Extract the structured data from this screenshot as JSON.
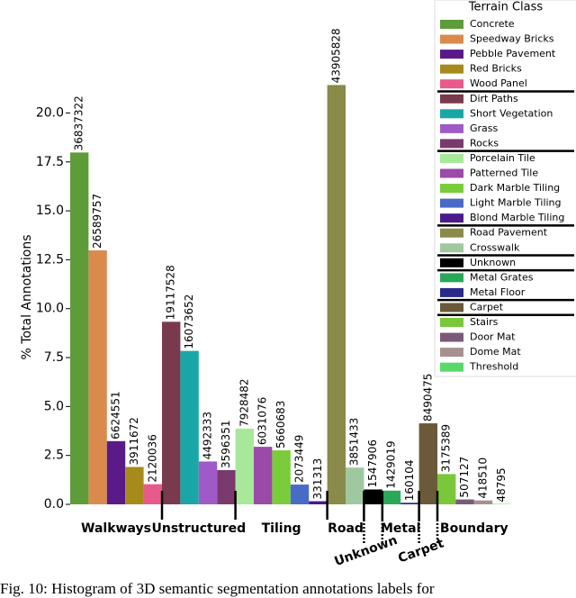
{
  "chart_data": {
    "type": "bar",
    "y_label": "% Total Annotations",
    "legend_title": "Terrain Class",
    "ylim": [
      0,
      22
    ],
    "yticks": [
      {
        "value": 0,
        "label": "0.0"
      },
      {
        "value": 2.5,
        "label": "2.5"
      },
      {
        "value": 5,
        "label": "5.0"
      },
      {
        "value": 7.5,
        "label": "7.5"
      },
      {
        "value": 10,
        "label": "10.0"
      },
      {
        "value": 12.5,
        "label": "12.5"
      },
      {
        "value": 15,
        "label": "15.0"
      },
      {
        "value": 17.5,
        "label": "17.5"
      },
      {
        "value": 20,
        "label": "20.0"
      }
    ],
    "groups": [
      {
        "name": "Walkways",
        "classes": [
          {
            "name": "Concrete",
            "color": "#5e9c3a",
            "value": 17.98,
            "count": 36837322
          },
          {
            "name": "Speedway Bricks",
            "color": "#d98b4e",
            "value": 12.98,
            "count": 26589757
          },
          {
            "name": "Pebble Pavement",
            "color": "#5a1a87",
            "value": 3.23,
            "count": 6624551
          },
          {
            "name": "Red Bricks",
            "color": "#a68b1c",
            "value": 1.91,
            "count": 3911672
          },
          {
            "name": "Wood Panel",
            "color": "#e85a8c",
            "value": 1.03,
            "count": 2120036
          }
        ]
      },
      {
        "name": "Unstructured",
        "classes": [
          {
            "name": "Dirt Paths",
            "color": "#7a3a4e",
            "value": 9.33,
            "count": 19117528
          },
          {
            "name": "Short Vegetation",
            "color": "#1aa6a6",
            "value": 7.84,
            "count": 16073652
          },
          {
            "name": "Grass",
            "color": "#a05ac8",
            "value": 2.19,
            "count": 4492333
          },
          {
            "name": "Rocks",
            "color": "#7a3a6e",
            "value": 1.75,
            "count": 3596351
          }
        ]
      },
      {
        "name": "Tiling",
        "classes": [
          {
            "name": "Porcelain Tile",
            "color": "#a8e89a",
            "value": 3.87,
            "count": 7928482
          },
          {
            "name": "Patterned Tile",
            "color": "#9a4aa8",
            "value": 2.94,
            "count": 6031076
          },
          {
            "name": "Dark Marble Tiling",
            "color": "#7acc3a",
            "value": 2.76,
            "count": 5660683
          },
          {
            "name": "Light Marble Tiling",
            "color": "#4a6ac8",
            "value": 1.01,
            "count": 2073449
          },
          {
            "name": "Blond Marble Tiling",
            "color": "#4a1a8a",
            "value": 0.16,
            "count": 331313
          }
        ]
      },
      {
        "name": "Road",
        "classes": [
          {
            "name": "Road Pavement",
            "color": "#8a8a4a",
            "value": 21.43,
            "count": 43905828
          },
          {
            "name": "Crosswalk",
            "color": "#a0c8a0",
            "value": 1.88,
            "count": 3851433
          }
        ]
      },
      {
        "name": "Unknown",
        "classes": [
          {
            "name": "Unknown",
            "color": "#000000",
            "value": 0.76,
            "count": 1547906
          }
        ]
      },
      {
        "name": "Metal",
        "classes": [
          {
            "name": "Metal Grates",
            "color": "#2aa85a",
            "value": 0.7,
            "count": 1429019
          },
          {
            "name": "Metal Floor",
            "color": "#2a2a8a",
            "value": 0.08,
            "count": 160104
          }
        ]
      },
      {
        "name": "Carpet",
        "classes": [
          {
            "name": "Carpet",
            "color": "#6a5a3a",
            "value": 4.14,
            "count": 8490475
          }
        ]
      },
      {
        "name": "Boundary",
        "classes": [
          {
            "name": "Stairs",
            "color": "#7ac83a",
            "value": 1.55,
            "count": 3175389
          },
          {
            "name": "Door Mat",
            "color": "#7a5a7a",
            "value": 0.25,
            "count": 507127
          },
          {
            "name": "Dome Mat",
            "color": "#a89090",
            "value": 0.2,
            "count": 418510
          },
          {
            "name": "Threshold",
            "color": "#5ad86a",
            "value": 0.02,
            "count": 48795
          }
        ]
      }
    ],
    "caption": "Fig. 10: Histogram of 3D semantic segmentation annotations labels for"
  }
}
